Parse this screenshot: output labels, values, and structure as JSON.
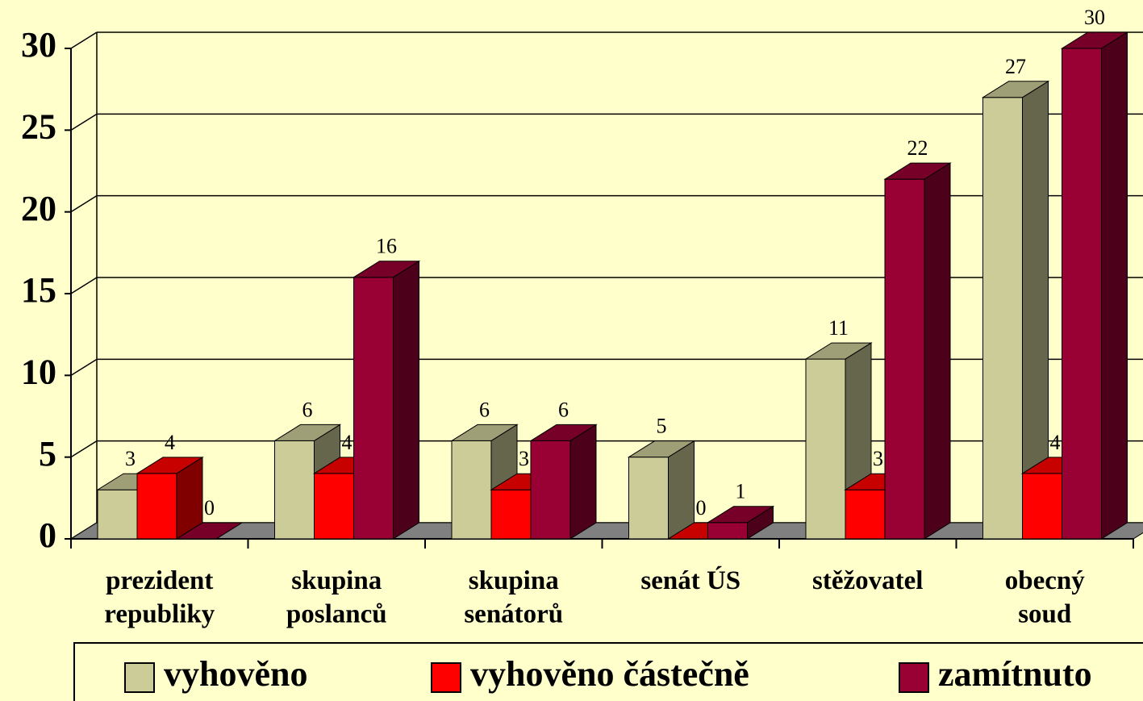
{
  "chart_data": {
    "type": "bar3d",
    "categories": [
      "prezident\nrepubliky",
      "skupina\nposlanců",
      "skupina\nsenátorů",
      "senát ÚS",
      "stěžovatel",
      "obecný\nsoud"
    ],
    "series": [
      {
        "name": "vyhověno",
        "color": "#cccc99",
        "values": [
          3,
          6,
          6,
          5,
          11,
          27
        ]
      },
      {
        "name": "vyhověno částečně",
        "color": "#ff0000",
        "values": [
          4,
          4,
          3,
          0,
          3,
          4
        ]
      },
      {
        "name": "zamítnuto",
        "color": "#990033",
        "values": [
          0,
          16,
          6,
          1,
          22,
          30
        ]
      }
    ],
    "ylim": [
      0,
      30
    ],
    "yticks": [
      0,
      5,
      10,
      15,
      20,
      25,
      30
    ],
    "grid": true,
    "legend": "bottom"
  }
}
